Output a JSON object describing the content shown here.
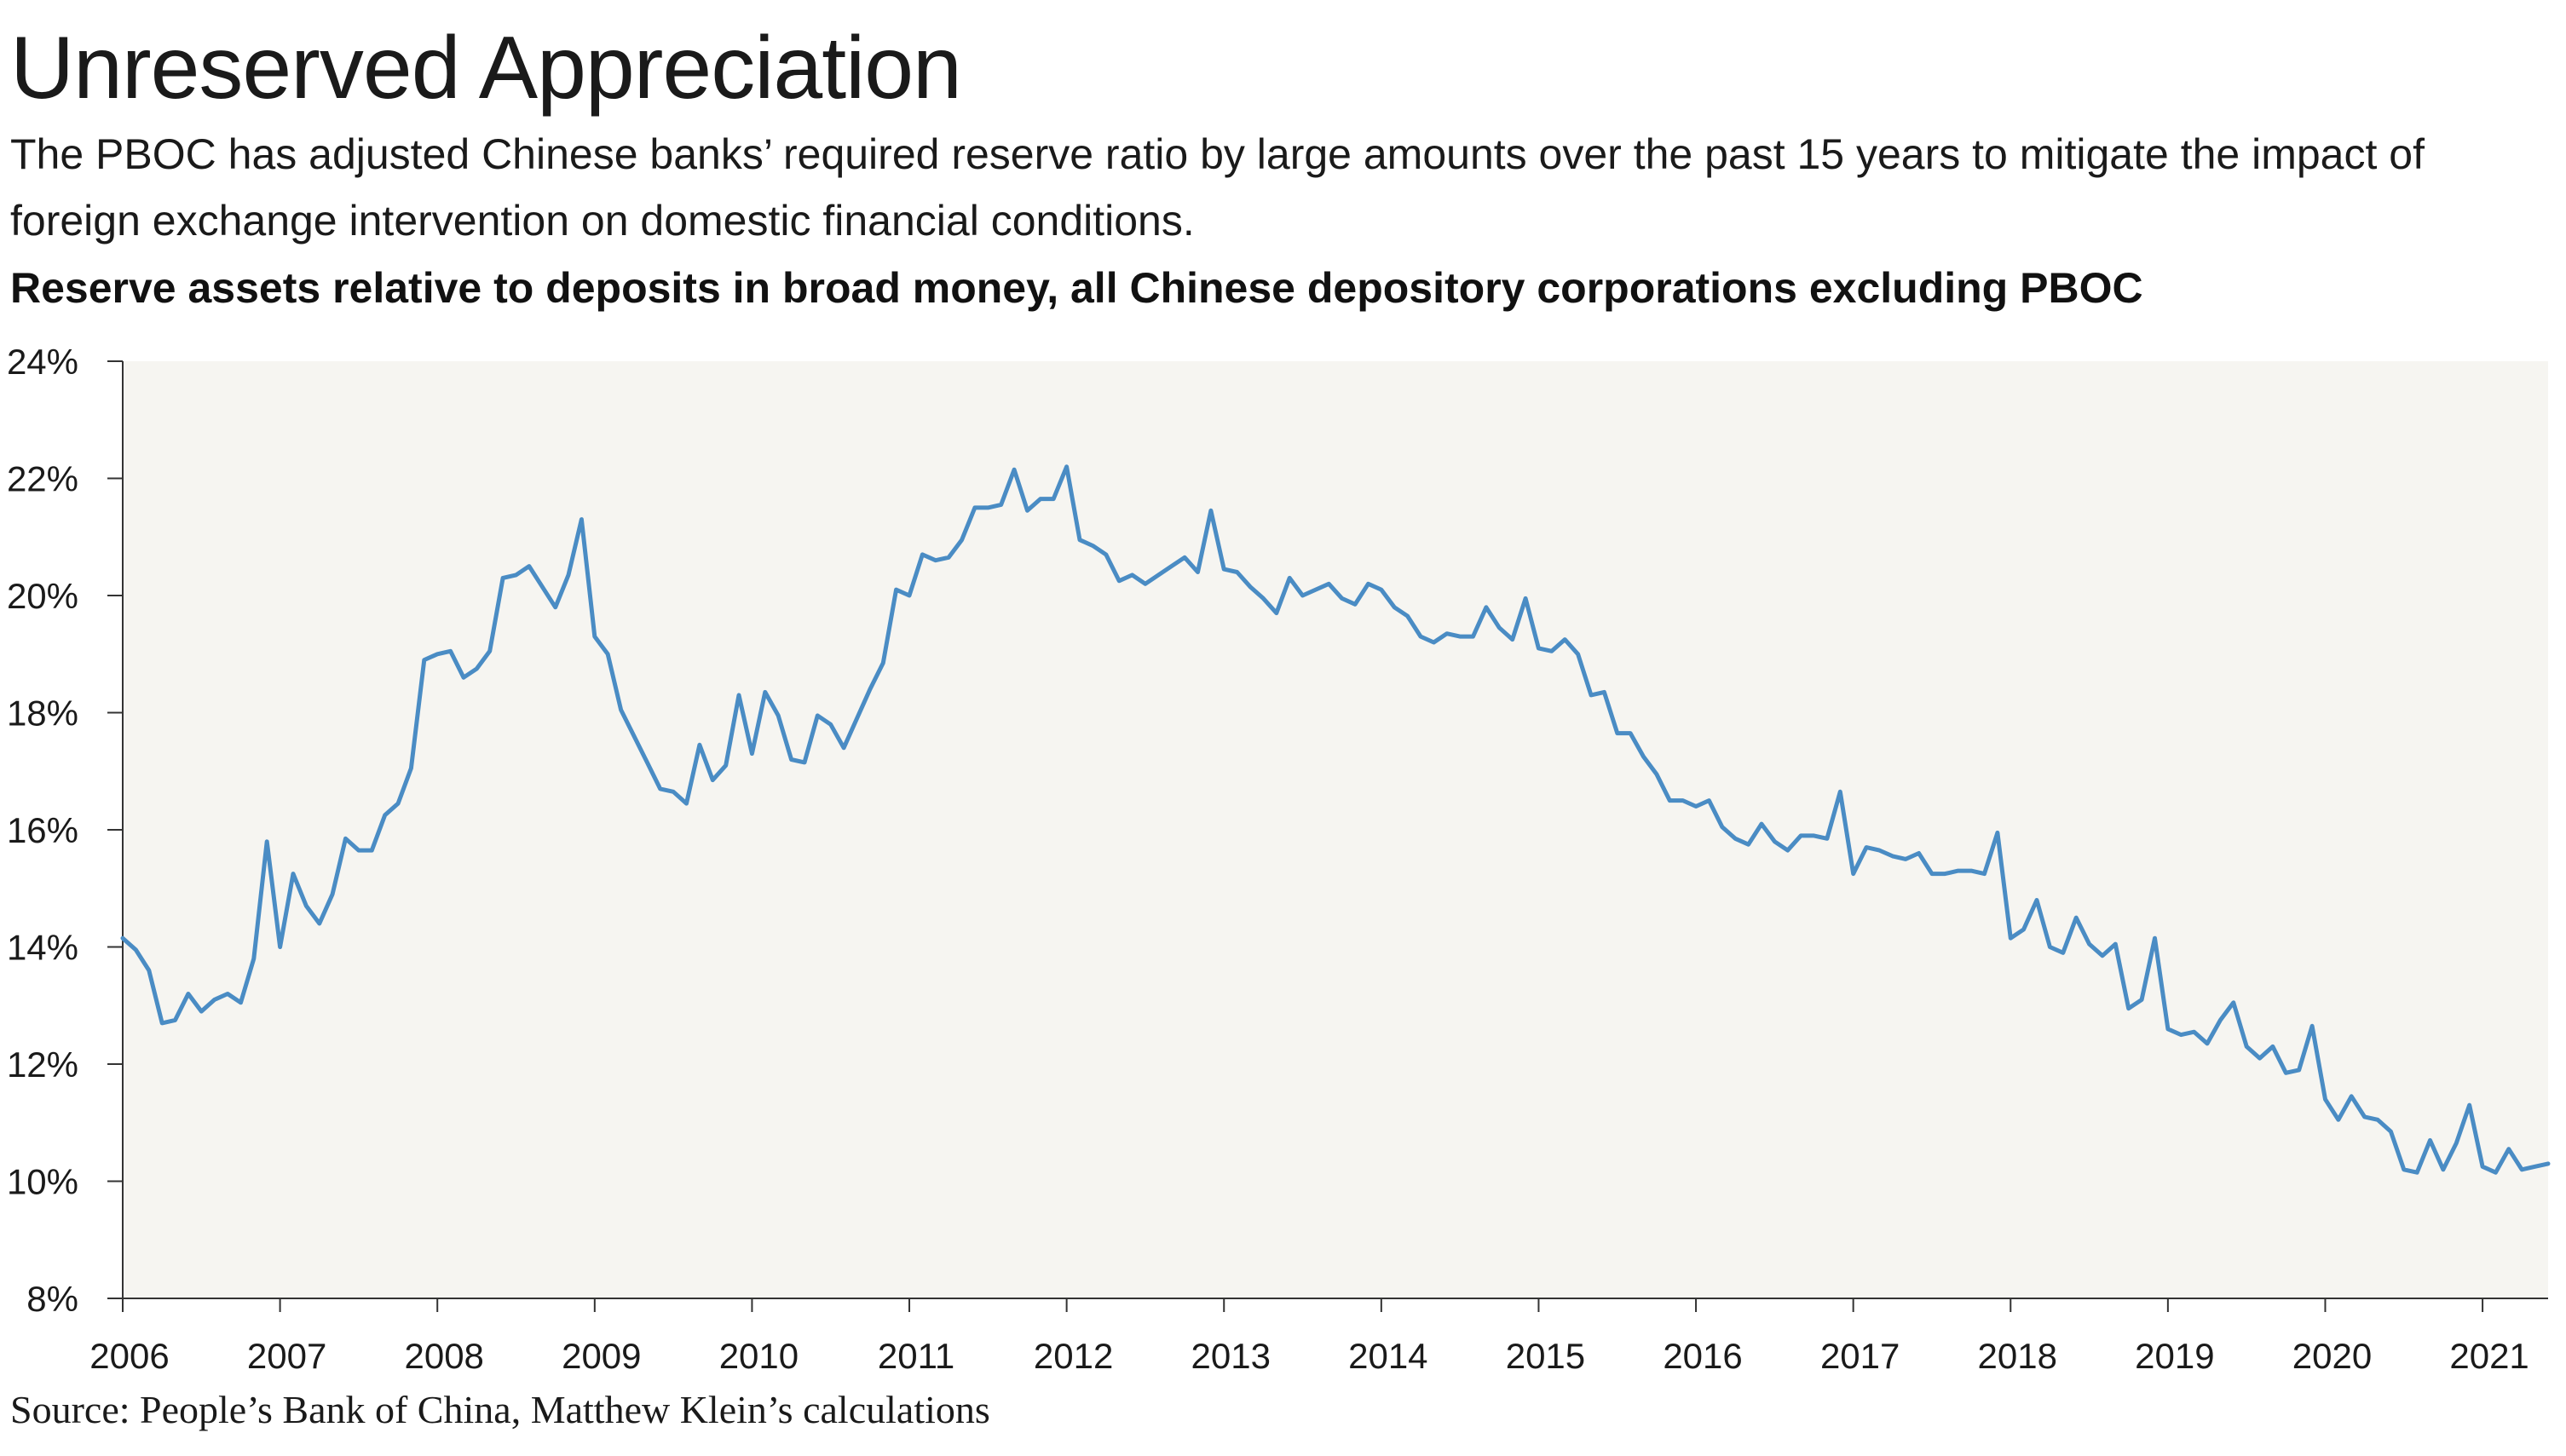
{
  "title": "Unreserved Appreciation",
  "subtitle": "The PBOC has adjusted Chinese banks’ required reserve ratio by large amounts over the past 15 years to mitigate the impact of foreign exchange intervention on domestic financial conditions.",
  "source": "Source: People’s Bank of China, Matthew Klein’s calculations",
  "colors": {
    "line": "#4a8cc4",
    "plot_background": "#f6f5f1",
    "axis": "#333333"
  },
  "chart_data": {
    "type": "line",
    "title": "Reserve assets relative to deposits in broad money, all Chinese depository corporations excluding PBOC",
    "xlabel": "",
    "ylabel": "",
    "x_ticks": [
      "2006",
      "2007",
      "2008",
      "2009",
      "2010",
      "2011",
      "2012",
      "2013",
      "2014",
      "2015",
      "2016",
      "2017",
      "2018",
      "2019",
      "2020",
      "2021"
    ],
    "y_ticks": [
      "24%",
      "22%",
      "20%",
      "18%",
      "16%",
      "14%",
      "12%",
      "10%",
      "8%"
    ],
    "ylim": [
      8,
      24
    ],
    "xlim": [
      "2006-01",
      "2021-06"
    ],
    "grid": false,
    "legend": "none",
    "series": [
      {
        "x": [
          "2006-01",
          "2006-02",
          "2006-03",
          "2006-04",
          "2006-05",
          "2006-06",
          "2006-07",
          "2006-08",
          "2006-09",
          "2006-10",
          "2006-11",
          "2006-12",
          "2007-01",
          "2007-02",
          "2007-03",
          "2007-04",
          "2007-05",
          "2007-06",
          "2007-07",
          "2007-08",
          "2007-09",
          "2007-10",
          "2007-11",
          "2007-12",
          "2008-01",
          "2008-02",
          "2008-03",
          "2008-04",
          "2008-05",
          "2008-06",
          "2008-07",
          "2008-08",
          "2008-09",
          "2008-10",
          "2008-11",
          "2008-12",
          "2009-01",
          "2009-02",
          "2009-03",
          "2009-04",
          "2009-05",
          "2009-06",
          "2009-07",
          "2009-08",
          "2009-09",
          "2009-10",
          "2009-11",
          "2009-12",
          "2010-01",
          "2010-02",
          "2010-03",
          "2010-04",
          "2010-05",
          "2010-06",
          "2010-07",
          "2010-08",
          "2010-09",
          "2010-10",
          "2010-11",
          "2010-12",
          "2011-01",
          "2011-02",
          "2011-03",
          "2011-04",
          "2011-05",
          "2011-06",
          "2011-07",
          "2011-08",
          "2011-09",
          "2011-10",
          "2011-11",
          "2011-12",
          "2012-01",
          "2012-02",
          "2012-03",
          "2012-04",
          "2012-05",
          "2012-06",
          "2012-07",
          "2012-08",
          "2012-09",
          "2012-10",
          "2012-11",
          "2012-12",
          "2013-01",
          "2013-02",
          "2013-03",
          "2013-04",
          "2013-05",
          "2013-06",
          "2013-07",
          "2013-08",
          "2013-09",
          "2013-10",
          "2013-11",
          "2013-12",
          "2014-01",
          "2014-02",
          "2014-03",
          "2014-04",
          "2014-05",
          "2014-06",
          "2014-07",
          "2014-08",
          "2014-09",
          "2014-10",
          "2014-11",
          "2014-12",
          "2015-01",
          "2015-02",
          "2015-03",
          "2015-04",
          "2015-05",
          "2015-06",
          "2015-07",
          "2015-08",
          "2015-09",
          "2015-10",
          "2015-11",
          "2015-12",
          "2016-01",
          "2016-02",
          "2016-03",
          "2016-04",
          "2016-05",
          "2016-06",
          "2016-07",
          "2016-08",
          "2016-09",
          "2016-10",
          "2016-11",
          "2016-12",
          "2017-01",
          "2017-02",
          "2017-03",
          "2017-04",
          "2017-05",
          "2017-06",
          "2017-07",
          "2017-08",
          "2017-09",
          "2017-10",
          "2017-11",
          "2017-12",
          "2018-01",
          "2018-02",
          "2018-03",
          "2018-04",
          "2018-05",
          "2018-06",
          "2018-07",
          "2018-08",
          "2018-09",
          "2018-10",
          "2018-11",
          "2018-12",
          "2019-01",
          "2019-02",
          "2019-03",
          "2019-04",
          "2019-05",
          "2019-06",
          "2019-07",
          "2019-08",
          "2019-09",
          "2019-10",
          "2019-11",
          "2019-12",
          "2020-01",
          "2020-02",
          "2020-03",
          "2020-04",
          "2020-05",
          "2020-06",
          "2020-07",
          "2020-08",
          "2020-09",
          "2020-10",
          "2020-11",
          "2020-12",
          "2021-01",
          "2021-02",
          "2021-03",
          "2021-04",
          "2021-05",
          "2021-06"
        ],
        "values": [
          14.15,
          13.95,
          13.6,
          12.7,
          12.75,
          13.2,
          12.9,
          13.1,
          13.2,
          13.05,
          13.8,
          15.8,
          14.0,
          15.25,
          14.7,
          14.4,
          14.9,
          15.85,
          15.65,
          15.65,
          16.25,
          16.45,
          17.05,
          18.9,
          19.0,
          19.05,
          18.6,
          18.75,
          19.05,
          20.3,
          20.35,
          20.5,
          20.15,
          19.8,
          20.35,
          21.3,
          19.3,
          19.0,
          18.05,
          17.6,
          17.15,
          16.7,
          16.65,
          16.45,
          17.45,
          16.85,
          17.1,
          18.3,
          17.3,
          18.35,
          17.95,
          17.2,
          17.15,
          17.95,
          17.8,
          17.4,
          17.9,
          18.4,
          18.85,
          20.1,
          20.0,
          20.7,
          20.6,
          20.65,
          20.95,
          21.5,
          21.5,
          21.55,
          22.15,
          21.45,
          21.65,
          21.65,
          22.2,
          20.95,
          20.85,
          20.7,
          20.25,
          20.35,
          20.2,
          20.35,
          20.5,
          20.65,
          20.4,
          21.45,
          20.45,
          20.4,
          20.15,
          19.95,
          19.7,
          20.3,
          20.0,
          20.1,
          20.2,
          19.95,
          19.85,
          20.2,
          20.1,
          19.8,
          19.65,
          19.3,
          19.2,
          19.35,
          19.3,
          19.3,
          19.8,
          19.45,
          19.25,
          19.95,
          19.1,
          19.05,
          19.25,
          19.0,
          18.3,
          18.35,
          17.65,
          17.65,
          17.25,
          16.95,
          16.5,
          16.5,
          16.4,
          16.5,
          16.05,
          15.85,
          15.75,
          16.1,
          15.8,
          15.65,
          15.9,
          15.9,
          15.85,
          16.65,
          15.25,
          15.7,
          15.65,
          15.55,
          15.5,
          15.6,
          15.25,
          15.25,
          15.3,
          15.3,
          15.25,
          15.95,
          14.15,
          14.3,
          14.8,
          14.0,
          13.9,
          14.5,
          14.05,
          13.85,
          14.05,
          12.95,
          13.1,
          14.15,
          12.6,
          12.5,
          12.55,
          12.35,
          12.75,
          13.05,
          12.3,
          12.1,
          12.3,
          11.85,
          11.9,
          12.65,
          11.4,
          11.05,
          11.45,
          11.1,
          11.05,
          10.85,
          10.2,
          10.15,
          10.7,
          10.2,
          10.65,
          11.3,
          10.25,
          10.15,
          10.55,
          10.2,
          10.25,
          10.3
        ]
      }
    ]
  }
}
